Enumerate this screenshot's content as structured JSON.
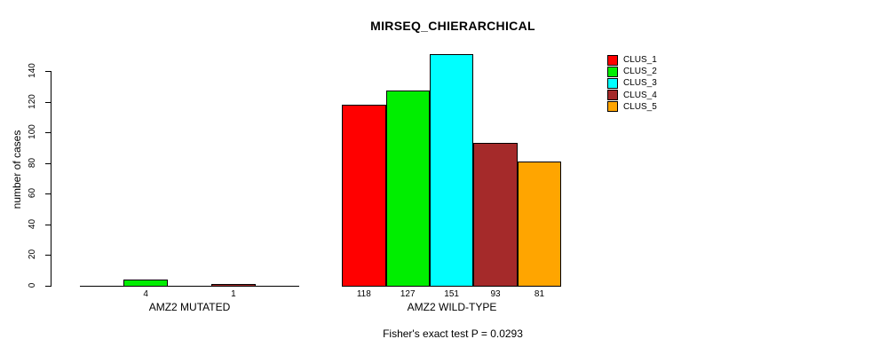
{
  "chart_data": {
    "type": "bar",
    "title": "MIRSEQ_CHIERARCHICAL",
    "ylabel": "number of cases",
    "xlabel": "",
    "sub": "Fisher's exact test P = 0.0293",
    "groups": [
      "AMZ2 MUTATED",
      "AMZ2 WILD-TYPE"
    ],
    "series": [
      {
        "name": "CLUS_1",
        "color": "#FF0000",
        "values": [
          0,
          118
        ]
      },
      {
        "name": "CLUS_2",
        "color": "#00EE00",
        "values": [
          4,
          127
        ]
      },
      {
        "name": "CLUS_3",
        "color": "#00FFFF",
        "values": [
          0,
          151
        ]
      },
      {
        "name": "CLUS_4",
        "color": "#A52A2A",
        "values": [
          1,
          93
        ]
      },
      {
        "name": "CLUS_5",
        "color": "#FFA500",
        "values": [
          0,
          81
        ]
      }
    ],
    "bar_value_labels": {
      "AMZ2 MUTATED": [
        "",
        "4",
        "",
        "1",
        ""
      ],
      "AMZ2 WILD-TYPE": [
        "118",
        "127",
        "151",
        "93",
        "81"
      ]
    },
    "yticks": [
      "0",
      "20",
      "40",
      "60",
      "80",
      "100",
      "120",
      "140"
    ],
    "ylim": [
      0,
      151
    ],
    "legend": {
      "position": "top-right",
      "entries": [
        "CLUS_1",
        "CLUS_2",
        "CLUS_3",
        "CLUS_4",
        "CLUS_5"
      ]
    },
    "grid": false,
    "background_color": "#FFFFFF",
    "axis_color": "#000000"
  }
}
